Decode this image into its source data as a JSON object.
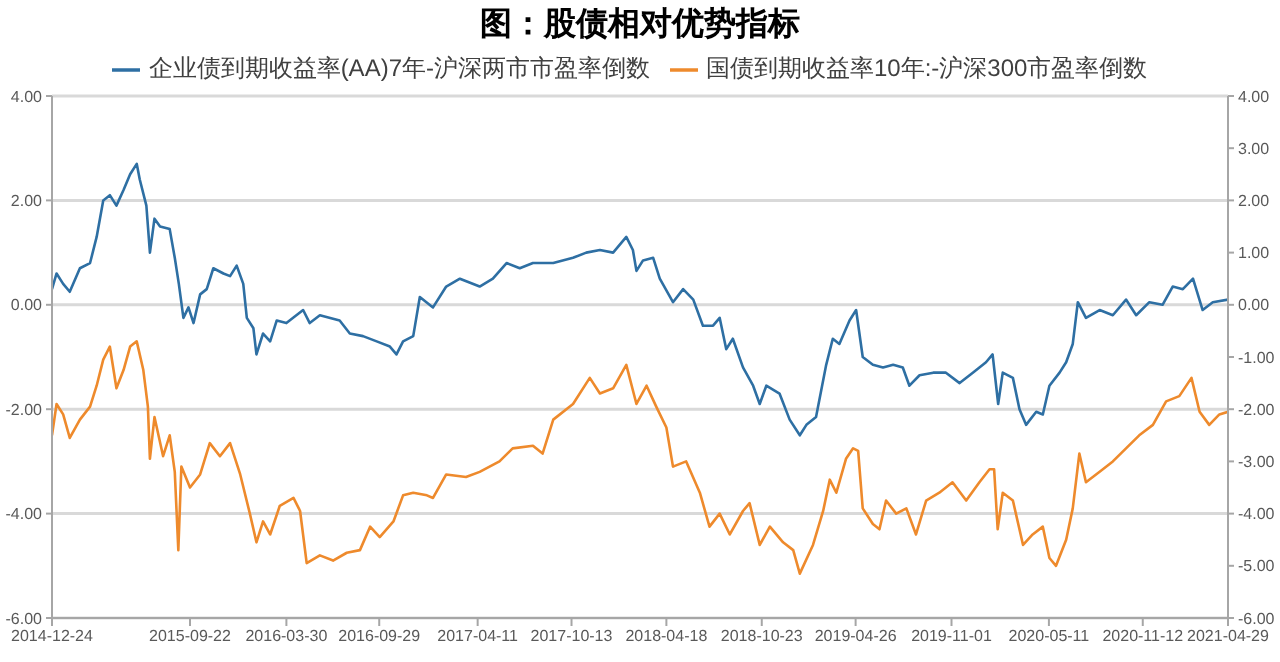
{
  "chart_data": {
    "type": "line",
    "title": "图：股债相对优势指标",
    "legend": "top",
    "grid": "y",
    "marker": "none",
    "line_style": "solid",
    "xlim": [
      "2014-12-24",
      "2021-04-29"
    ],
    "xticks": [
      "2014-12-24",
      "2015-09-22",
      "2016-03-30",
      "2016-09-29",
      "2017-04-11",
      "2017-10-13",
      "2018-04-18",
      "2018-10-23",
      "2019-04-26",
      "2019-11-01",
      "2020-05-11",
      "2020-11-12",
      "2021-04-29"
    ],
    "ylim": [
      -6,
      4
    ],
    "yticks": [
      {
        "value": -6,
        "label": "-6.00"
      },
      {
        "value": -4,
        "label": "-4.00"
      },
      {
        "value": -2,
        "label": "-2.00"
      },
      {
        "value": 0,
        "label": "0.00"
      },
      {
        "value": 2,
        "label": "2.00"
      },
      {
        "value": 4,
        "label": "4.00"
      }
    ],
    "y2lim": [
      -6,
      4
    ],
    "y2ticks": [
      {
        "value": -6,
        "label": "-6.00"
      },
      {
        "value": -5,
        "label": "-5.00"
      },
      {
        "value": -4,
        "label": "-4.00"
      },
      {
        "value": -3,
        "label": "-3.00"
      },
      {
        "value": -2,
        "label": "-2.00"
      },
      {
        "value": -1,
        "label": "-1.00"
      },
      {
        "value": 0,
        "label": "0.00"
      },
      {
        "value": 1,
        "label": "1.00"
      },
      {
        "value": 2,
        "label": "2.00"
      },
      {
        "value": 3,
        "label": "3.00"
      },
      {
        "value": 4,
        "label": "4.00"
      }
    ],
    "series": [
      {
        "name": "企业债到期收益率(AA)7年-沪深两市市盈率倒数",
        "color": "#2e6fa3",
        "x": [
          "2014-12-24",
          "2015-01-02",
          "2015-01-15",
          "2015-01-28",
          "2015-02-17",
          "2015-03-09",
          "2015-03-22",
          "2015-04-04",
          "2015-04-17",
          "2015-04-30",
          "2015-05-14",
          "2015-05-27",
          "2015-06-09",
          "2015-06-15",
          "2015-06-28",
          "2015-07-05",
          "2015-07-14",
          "2015-07-25",
          "2015-08-13",
          "2015-08-23",
          "2015-08-31",
          "2015-09-09",
          "2015-09-19",
          "2015-09-29",
          "2015-10-12",
          "2015-10-25",
          "2015-11-07",
          "2015-11-27",
          "2015-12-10",
          "2015-12-23",
          "2016-01-05",
          "2016-01-12",
          "2016-01-25",
          "2016-01-31",
          "2016-02-13",
          "2016-02-27",
          "2016-03-11",
          "2016-03-30",
          "2016-05-02",
          "2016-05-15",
          "2016-06-04",
          "2016-07-13",
          "2016-08-02",
          "2016-08-28",
          "2016-09-24",
          "2016-10-20",
          "2016-11-02",
          "2016-11-15",
          "2016-12-05",
          "2016-12-18",
          "2017-01-13",
          "2017-02-08",
          "2017-03-07",
          "2017-04-15",
          "2017-05-11",
          "2017-06-07",
          "2017-07-03",
          "2017-07-29",
          "2017-09-07",
          "2017-10-16",
          "2017-11-11",
          "2017-12-08",
          "2018-01-03",
          "2018-01-29",
          "2018-02-11",
          "2018-02-18",
          "2018-03-03",
          "2018-03-23",
          "2018-04-05",
          "2018-05-01",
          "2018-05-21",
          "2018-06-10",
          "2018-06-29",
          "2018-07-19",
          "2018-08-01",
          "2018-08-14",
          "2018-08-27",
          "2018-09-16",
          "2018-10-06",
          "2018-10-19",
          "2018-11-01",
          "2018-11-27",
          "2018-12-17",
          "2019-01-06",
          "2019-01-19",
          "2019-02-07",
          "2019-02-27",
          "2019-03-12",
          "2019-03-25",
          "2019-04-14",
          "2019-04-27",
          "2019-05-10",
          "2019-05-30",
          "2019-06-19",
          "2019-07-09",
          "2019-07-28",
          "2019-08-10",
          "2019-08-30",
          "2019-09-26",
          "2019-10-21",
          "2019-11-17",
          "2019-12-13",
          "2020-01-08",
          "2020-01-21",
          "2020-02-01",
          "2020-02-10",
          "2020-03-01",
          "2020-03-14",
          "2020-03-27",
          "2020-04-16",
          "2020-04-29",
          "2020-05-12",
          "2020-06-01",
          "2020-06-14",
          "2020-06-27",
          "2020-07-07",
          "2020-07-23",
          "2020-08-19",
          "2020-09-14",
          "2020-10-10",
          "2020-10-30",
          "2020-11-25",
          "2020-12-21",
          "2021-01-10",
          "2021-01-30",
          "2021-02-19",
          "2021-03-10",
          "2021-03-30",
          "2021-04-29"
        ],
        "values": [
          0.3,
          0.6,
          0.4,
          0.25,
          0.7,
          0.8,
          1.3,
          2.0,
          2.1,
          1.9,
          2.2,
          2.5,
          2.7,
          2.4,
          1.9,
          1.0,
          1.65,
          1.5,
          1.45,
          0.9,
          0.4,
          -0.25,
          -0.05,
          -0.35,
          0.2,
          0.3,
          0.7,
          0.6,
          0.55,
          0.75,
          0.4,
          -0.25,
          -0.45,
          -0.95,
          -0.55,
          -0.7,
          -0.3,
          -0.35,
          -0.1,
          -0.35,
          -0.2,
          -0.3,
          -0.55,
          -0.6,
          -0.7,
          -0.8,
          -0.95,
          -0.7,
          -0.6,
          0.15,
          -0.05,
          0.35,
          0.5,
          0.35,
          0.5,
          0.8,
          0.7,
          0.8,
          0.8,
          0.9,
          1.0,
          1.05,
          1.0,
          1.3,
          1.05,
          0.65,
          0.85,
          0.9,
          0.5,
          0.05,
          0.3,
          0.1,
          -0.4,
          -0.4,
          -0.25,
          -0.85,
          -0.65,
          -1.2,
          -1.55,
          -1.9,
          -1.55,
          -1.7,
          -2.2,
          -2.5,
          -2.3,
          -2.15,
          -1.15,
          -0.65,
          -0.75,
          -0.3,
          -0.1,
          -1.0,
          -1.15,
          -1.2,
          -1.15,
          -1.2,
          -1.55,
          -1.35,
          -1.3,
          -1.3,
          -1.5,
          -1.3,
          -1.1,
          -0.95,
          -1.9,
          -1.3,
          -1.4,
          -2.0,
          -2.3,
          -2.05,
          -2.1,
          -1.55,
          -1.3,
          -1.1,
          -0.75,
          0.05,
          -0.25,
          -0.1,
          -0.2,
          0.1,
          -0.2,
          0.05,
          0,
          0.35,
          0.3,
          0.5,
          -0.1,
          0.05,
          0.1
        ]
      },
      {
        "name": "国债到期收益率10年:-沪深300市盈率倒数",
        "color": "#ee8a2c",
        "x": [
          "2014-12-24",
          "2015-01-02",
          "2015-01-15",
          "2015-01-28",
          "2015-02-17",
          "2015-03-09",
          "2015-03-22",
          "2015-04-04",
          "2015-04-17",
          "2015-04-30",
          "2015-05-14",
          "2015-05-27",
          "2015-06-09",
          "2015-06-22",
          "2015-07-01",
          "2015-07-05",
          "2015-07-14",
          "2015-07-31",
          "2015-08-13",
          "2015-08-23",
          "2015-08-30",
          "2015-09-05",
          "2015-09-22",
          "2015-10-12",
          "2015-10-31",
          "2015-11-20",
          "2015-12-10",
          "2015-12-30",
          "2016-01-18",
          "2016-01-31",
          "2016-02-13",
          "2016-02-27",
          "2016-03-17",
          "2016-04-13",
          "2016-04-26",
          "2016-05-09",
          "2016-06-04",
          "2016-06-30",
          "2016-07-27",
          "2016-08-22",
          "2016-09-11",
          "2016-09-30",
          "2016-10-27",
          "2016-11-15",
          "2016-12-05",
          "2017-01-01",
          "2017-01-13",
          "2017-02-08",
          "2017-03-19",
          "2017-04-15",
          "2017-05-24",
          "2017-06-19",
          "2017-07-29",
          "2017-08-17",
          "2017-09-07",
          "2017-10-16",
          "2017-11-18",
          "2017-12-08",
          "2018-01-03",
          "2018-01-29",
          "2018-02-18",
          "2018-03-10",
          "2018-03-29",
          "2018-04-18",
          "2018-05-01",
          "2018-05-27",
          "2018-06-23",
          "2018-07-12",
          "2018-08-01",
          "2018-08-21",
          "2018-09-16",
          "2018-09-29",
          "2018-10-19",
          "2018-11-08",
          "2018-12-04",
          "2018-12-24",
          "2019-01-06",
          "2019-02-01",
          "2019-02-21",
          "2019-03-06",
          "2019-03-19",
          "2019-04-07",
          "2019-04-21",
          "2019-05-01",
          "2019-05-10",
          "2019-05-30",
          "2019-06-12",
          "2019-06-25",
          "2019-07-15",
          "2019-08-04",
          "2019-08-23",
          "2019-09-12",
          "2019-10-08",
          "2019-11-03",
          "2019-11-30",
          "2019-12-26",
          "2020-01-15",
          "2020-01-24",
          "2020-01-31",
          "2020-02-10",
          "2020-03-01",
          "2020-03-21",
          "2020-04-09",
          "2020-04-29",
          "2020-05-12",
          "2020-05-25",
          "2020-06-14",
          "2020-06-27",
          "2020-07-10",
          "2020-07-23",
          "2020-08-19",
          "2020-09-14",
          "2020-10-10",
          "2020-11-05",
          "2020-12-02",
          "2020-12-28",
          "2021-01-23",
          "2021-02-16",
          "2021-03-04",
          "2021-03-23",
          "2021-04-12",
          "2021-04-29"
        ],
        "values": [
          -2.5,
          -1.9,
          -2.1,
          -2.55,
          -2.2,
          -1.95,
          -1.55,
          -1.05,
          -0.8,
          -1.6,
          -1.25,
          -0.8,
          -0.7,
          -1.25,
          -1.95,
          -2.95,
          -2.15,
          -2.9,
          -2.5,
          -3.2,
          -4.7,
          -3.1,
          -3.5,
          -3.25,
          -2.65,
          -2.9,
          -2.65,
          -3.25,
          -4.0,
          -4.55,
          -4.15,
          -4.4,
          -3.85,
          -3.7,
          -3.95,
          -4.95,
          -4.8,
          -4.9,
          -4.75,
          -4.7,
          -4.25,
          -4.45,
          -4.15,
          -3.65,
          -3.6,
          -3.65,
          -3.7,
          -3.25,
          -3.3,
          -3.2,
          -3.0,
          -2.75,
          -2.7,
          -2.85,
          -2.2,
          -1.9,
          -1.4,
          -1.7,
          -1.6,
          -1.15,
          -1.9,
          -1.55,
          -1.95,
          -2.35,
          -3.1,
          -3.0,
          -3.6,
          -4.25,
          -4.0,
          -4.4,
          -3.95,
          -3.8,
          -4.6,
          -4.25,
          -4.55,
          -4.7,
          -5.15,
          -4.6,
          -3.95,
          -3.35,
          -3.6,
          -2.95,
          -2.75,
          -2.8,
          -3.9,
          -4.2,
          -4.3,
          -3.75,
          -4.0,
          -3.9,
          -4.4,
          -3.75,
          -3.6,
          -3.4,
          -3.75,
          -3.4,
          -3.15,
          -3.15,
          -4.3,
          -3.6,
          -3.75,
          -4.6,
          -4.4,
          -4.25,
          -4.85,
          -5.0,
          -4.5,
          -3.9,
          -2.85,
          -3.4,
          -3.2,
          -3.0,
          -2.75,
          -2.5,
          -2.3,
          -1.85,
          -1.75,
          -1.4,
          -2.05,
          -2.3,
          -2.1,
          -2.05
        ]
      }
    ]
  }
}
